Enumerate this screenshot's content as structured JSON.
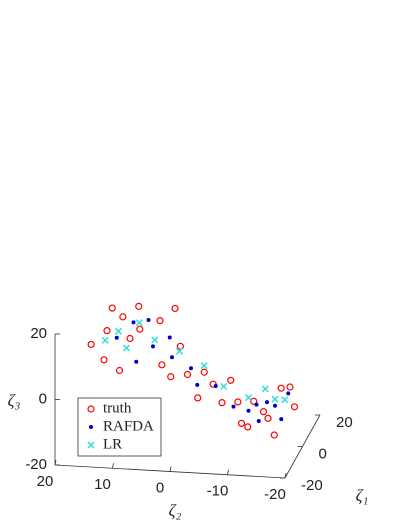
{
  "chart_data": {
    "type": "scatter3d",
    "xlabel": "ζ₁",
    "ylabel": "ζ₂",
    "zlabel": "ζ₃",
    "xlim": [
      -20,
      20
    ],
    "xticks": [
      -20,
      0,
      20
    ],
    "ylim": [
      -20,
      20
    ],
    "yticks": [
      20,
      10,
      0,
      -10,
      -20
    ],
    "zlim": [
      -20,
      20
    ],
    "zticks": [
      -20,
      0,
      20
    ],
    "legend": "lower left",
    "series": [
      {
        "name": "truth",
        "color": "#ff0000",
        "marker": "circle",
        "x": [
          -5,
          0,
          5,
          10,
          -10,
          0,
          8,
          12,
          5,
          -3,
          0,
          6,
          -6,
          3,
          10,
          -8,
          0,
          5,
          -4,
          8,
          0,
          -10,
          12,
          4,
          -6,
          10,
          -2,
          6,
          15,
          -12
        ],
        "y": [
          16,
          14,
          12,
          10,
          13,
          10,
          6,
          4,
          2,
          4,
          0,
          -2,
          2,
          -4,
          -6,
          -3,
          -6,
          -8,
          -10,
          -12,
          -14,
          -12,
          -16,
          -18,
          -16,
          -10,
          8,
          14,
          -14,
          10
        ],
        "z": [
          10,
          12,
          14,
          15,
          8,
          10,
          12,
          14,
          6,
          4,
          0,
          -2,
          2,
          -4,
          -6,
          -3,
          -8,
          -10,
          -12,
          -14,
          -12,
          -10,
          -8,
          -10,
          -14,
          -12,
          14,
          16,
          -10,
          6
        ]
      },
      {
        "name": "RAFDA",
        "color": "#0000cc",
        "marker": "dot",
        "x": [
          -2,
          4,
          8,
          0,
          2,
          4,
          -2,
          6,
          0,
          4,
          8,
          -4,
          10,
          2,
          6,
          -6,
          12,
          0
        ],
        "y": [
          12,
          10,
          8,
          6,
          3,
          0,
          -2,
          -4,
          -8,
          -10,
          -14,
          -13,
          -16,
          -16,
          4,
          8,
          -12,
          -12
        ],
        "z": [
          11,
          13,
          12,
          8,
          4,
          0,
          -2,
          -6,
          -9,
          -12,
          -12,
          -11,
          -9,
          -13,
          8,
          6,
          -13,
          -8
        ]
      },
      {
        "name": "LR",
        "color": "#33dddd",
        "marker": "x",
        "x": [
          0,
          4,
          -4,
          2,
          4,
          6,
          2,
          4,
          8,
          6,
          -2,
          10
        ],
        "y": [
          12,
          9,
          10,
          6,
          2,
          -2,
          -6,
          -10,
          -14,
          -16,
          14,
          -12
        ],
        "z": [
          12,
          13,
          9,
          9,
          5,
          0,
          -4,
          -8,
          -10,
          -9,
          10,
          -8
        ]
      }
    ]
  }
}
